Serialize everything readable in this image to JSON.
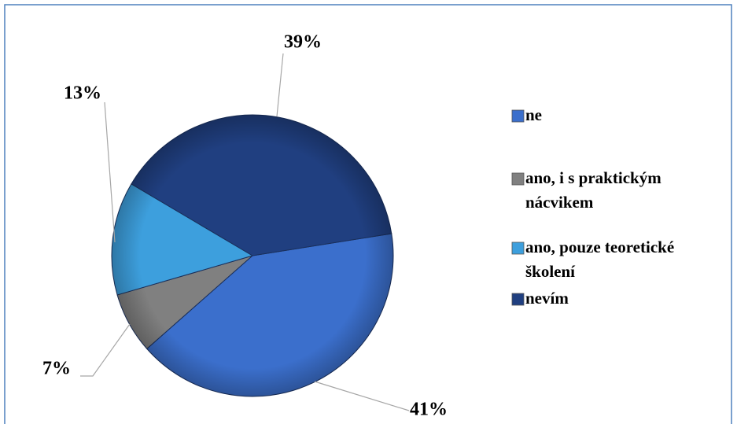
{
  "chart_data": {
    "type": "pie",
    "categories": [
      "ne",
      "ano, i s praktickým nácvikem",
      "ano, pouze teoretické školení",
      "nevím"
    ],
    "values": [
      41,
      7,
      13,
      39
    ],
    "value_labels": [
      "41%",
      "7%",
      "13%",
      "39%"
    ],
    "colors": [
      "#3b6fcc",
      "#808080",
      "#3d9fdd",
      "#203f80"
    ]
  }
}
